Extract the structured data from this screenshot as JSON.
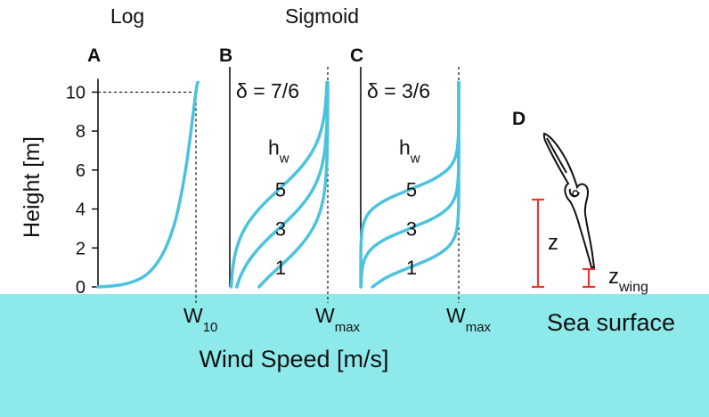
{
  "figure": {
    "x_label": "Wind Speed [m/s]",
    "y_label": "Height [m]"
  },
  "chart_data": [
    {
      "type": "line",
      "title": "Log",
      "panel": "A",
      "color": "#4cc3de",
      "ylim": [
        0,
        11.3
      ],
      "yticks": [
        0,
        2,
        4,
        6,
        8,
        10
      ],
      "xlim": [
        0,
        1
      ],
      "xticks": [
        {
          "value": 1,
          "label": "W",
          "sub": "10"
        }
      ],
      "reference_height": 10,
      "heights": [
        0,
        0.03,
        0.08,
        0.18,
        0.35,
        0.65,
        1.2,
        2.1,
        3.6,
        6.2,
        10,
        10.5
      ],
      "series": [
        {
          "values": [
            0,
            0.1,
            0.2,
            0.3,
            0.4,
            0.5,
            0.6,
            0.7,
            0.8,
            0.9,
            1.0,
            1.02
          ]
        }
      ]
    },
    {
      "type": "line",
      "title": "Sigmoid",
      "panel": "B",
      "annotation": "δ = 7/6",
      "color": "#4cc3de",
      "legend_title": {
        "text": "h",
        "sub": "w"
      },
      "ylim": [
        0,
        11.3
      ],
      "xlim": [
        0,
        1
      ],
      "xticks": [
        {
          "value": 1,
          "label": "W",
          "sub": "max"
        }
      ],
      "heights": [
        0,
        0.5,
        1,
        1.5,
        2,
        2.5,
        3,
        3.5,
        4,
        4.5,
        5,
        5.5,
        6,
        6.5,
        7,
        7.5,
        8,
        8.5,
        9,
        9.5,
        10,
        10.5
      ],
      "series": [
        {
          "name": "5",
          "values": [
            0.014,
            0.021,
            0.031,
            0.047,
            0.071,
            0.105,
            0.153,
            0.217,
            0.298,
            0.394,
            0.5,
            0.606,
            0.702,
            0.783,
            0.847,
            0.895,
            0.929,
            0.953,
            0.969,
            0.979,
            0.986,
            0.991
          ]
        },
        {
          "name": "3",
          "values": [
            0.071,
            0.105,
            0.153,
            0.217,
            0.298,
            0.394,
            0.5,
            0.606,
            0.702,
            0.783,
            0.847,
            0.895,
            0.929,
            0.953,
            0.969,
            0.979,
            0.986,
            0.991,
            0.994,
            0.996,
            0.997,
            0.998
          ]
        },
        {
          "name": "1",
          "values": [
            0.298,
            0.394,
            0.5,
            0.606,
            0.702,
            0.783,
            0.847,
            0.895,
            0.929,
            0.953,
            0.969,
            0.979,
            0.986,
            0.991,
            0.994,
            0.996,
            0.997,
            0.998,
            0.999,
            0.999,
            1.0,
            1.0
          ]
        }
      ]
    },
    {
      "type": "line",
      "panel": "C",
      "annotation": "δ = 3/6",
      "color": "#4cc3de",
      "legend_title": {
        "text": "h",
        "sub": "w"
      },
      "ylim": [
        0,
        11.3
      ],
      "xlim": [
        0,
        1
      ],
      "xticks": [
        {
          "value": 1,
          "label": "W",
          "sub": "max"
        }
      ],
      "heights": [
        0,
        0.5,
        1,
        1.5,
        2,
        2.5,
        3,
        3.5,
        4,
        4.5,
        5,
        5.5,
        6,
        6.5,
        7,
        7.5,
        8,
        8.5,
        9,
        9.5,
        10,
        10.5
      ],
      "series": [
        {
          "name": "5",
          "values": [
            0,
            0,
            0,
            0.001,
            0.002,
            0.007,
            0.018,
            0.047,
            0.119,
            0.269,
            0.5,
            0.731,
            0.881,
            0.953,
            0.982,
            0.993,
            0.998,
            0.999,
            1,
            1,
            1,
            1
          ]
        },
        {
          "name": "3",
          "values": [
            0.002,
            0.007,
            0.018,
            0.047,
            0.119,
            0.269,
            0.5,
            0.731,
            0.881,
            0.953,
            0.982,
            0.993,
            0.998,
            0.999,
            1,
            1,
            1,
            1,
            1,
            1,
            1,
            1
          ]
        },
        {
          "name": "1",
          "values": [
            0.119,
            0.269,
            0.5,
            0.731,
            0.881,
            0.953,
            0.982,
            0.993,
            0.998,
            0.999,
            1,
            1,
            1,
            1,
            1,
            1,
            1,
            1,
            1,
            1,
            1,
            1
          ]
        }
      ]
    }
  ],
  "panel_d": {
    "label": "D",
    "z_label": "z",
    "z_wing_label": {
      "text": "z",
      "sub": "wing"
    },
    "surface_label": "Sea surface"
  }
}
